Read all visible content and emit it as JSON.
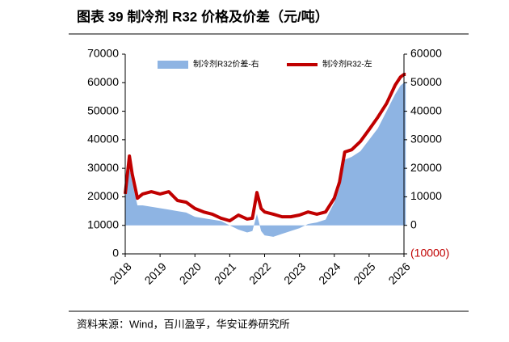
{
  "header": {
    "title": "图表 39 制冷剂 R32 价格及价差（元/吨）"
  },
  "source": "资料来源：Wind，百川盈孚，华安证券研究所",
  "chart_data": {
    "type": "line-area",
    "x": [
      2018.0,
      2018.12,
      2018.2,
      2018.35,
      2018.5,
      2018.75,
      2019.0,
      2019.25,
      2019.5,
      2019.75,
      2020.0,
      2020.25,
      2020.5,
      2020.75,
      2021.0,
      2021.25,
      2021.5,
      2021.65,
      2021.78,
      2021.9,
      2022.0,
      2022.25,
      2022.5,
      2022.75,
      2023.0,
      2023.25,
      2023.5,
      2023.75,
      2024.0,
      2024.15,
      2024.3,
      2024.5,
      2024.75,
      2025.0,
      2025.25,
      2025.5,
      2025.75,
      2025.9,
      2026.0,
      2026.05
    ],
    "series": [
      {
        "name": "制冷剂R32价差-右",
        "color": "#8eb4e3",
        "axis": "y2",
        "kind": "area",
        "values": [
          9000,
          20000,
          15000,
          7000,
          7000,
          6500,
          6000,
          5500,
          5000,
          4500,
          3000,
          2500,
          2000,
          1500,
          0,
          -1500,
          -2500,
          -2000,
          4000,
          -2000,
          -3500,
          -4000,
          -3000,
          -2000,
          -1000,
          500,
          1000,
          2000,
          8000,
          13000,
          23000,
          24000,
          26000,
          30000,
          34000,
          40000,
          46000,
          49000,
          50000,
          50000
        ]
      },
      {
        "name": "制冷剂R32-左",
        "color": "#c00000",
        "kind": "line",
        "values": [
          21000,
          34300,
          28000,
          19500,
          21000,
          21800,
          21000,
          21800,
          18700,
          18100,
          15900,
          14700,
          13900,
          12500,
          11600,
          13600,
          12200,
          12500,
          21500,
          15900,
          14700,
          13900,
          13000,
          13000,
          13600,
          14700,
          13900,
          14700,
          19500,
          25200,
          35700,
          36500,
          39400,
          43600,
          47900,
          52700,
          59200,
          62000,
          62900,
          62900
        ]
      }
    ],
    "xlim": [
      2018,
      2026
    ],
    "xticks": [
      2018,
      2019,
      2020,
      2021,
      2022,
      2023,
      2024,
      2025,
      2026
    ],
    "ylim": [
      0,
      70000
    ],
    "yticks": [
      0,
      10000,
      20000,
      30000,
      40000,
      50000,
      60000,
      70000
    ],
    "y2lim": [
      -10000,
      60000
    ],
    "y2ticks": [
      {
        "value": -10000,
        "label": "(10000)"
      },
      0,
      10000,
      20000,
      30000,
      40000,
      50000,
      60000
    ],
    "legend": "top"
  }
}
